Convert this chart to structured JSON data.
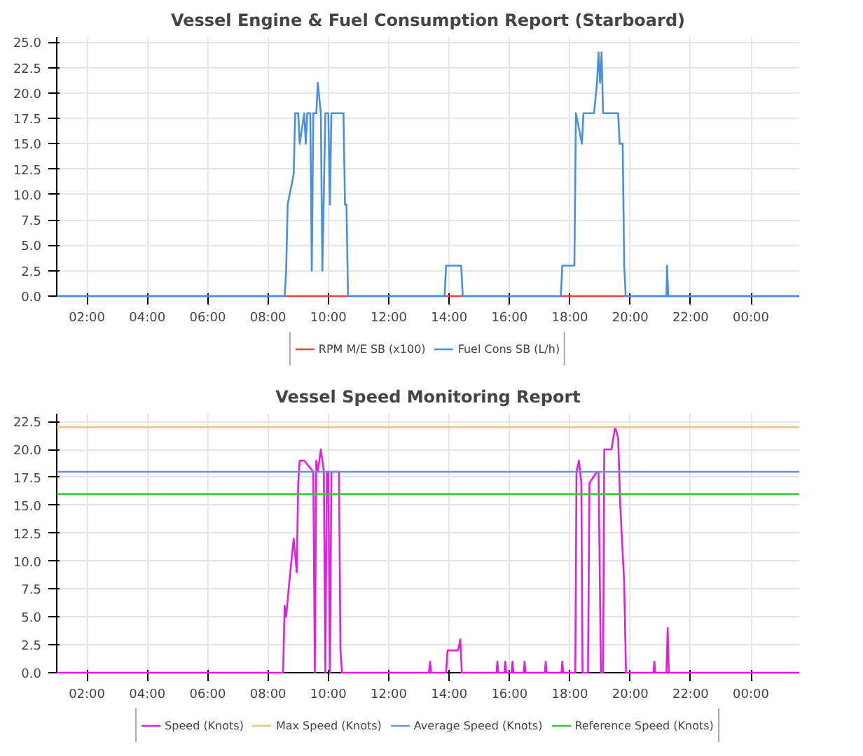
{
  "chart_data": [
    {
      "type": "line",
      "title": "Vessel Engine & Fuel Consumption Report (Starboard)",
      "xlim": [
        1,
        25.6
      ],
      "ylim": [
        0,
        25.5
      ],
      "xticks": [
        {
          "value": 2,
          "label": "02:00"
        },
        {
          "value": 4,
          "label": "04:00"
        },
        {
          "value": 6,
          "label": "06:00"
        },
        {
          "value": 8,
          "label": "08:00"
        },
        {
          "value": 10,
          "label": "10:00"
        },
        {
          "value": 12,
          "label": "12:00"
        },
        {
          "value": 14,
          "label": "14:00"
        },
        {
          "value": 16,
          "label": "16:00"
        },
        {
          "value": 18,
          "label": "18:00"
        },
        {
          "value": 20,
          "label": "20:00"
        },
        {
          "value": 22,
          "label": "22:00"
        },
        {
          "value": 24,
          "label": "00:00"
        }
      ],
      "yticks": [
        {
          "value": 0,
          "label": "0.0"
        },
        {
          "value": 2.5,
          "label": "2.5"
        },
        {
          "value": 5,
          "label": "5.0"
        },
        {
          "value": 7.5,
          "label": "7.5"
        },
        {
          "value": 10,
          "label": "10.0"
        },
        {
          "value": 12.5,
          "label": "12.5"
        },
        {
          "value": 15,
          "label": "15.0"
        },
        {
          "value": 17.5,
          "label": "17.5"
        },
        {
          "value": 20,
          "label": "20.0"
        },
        {
          "value": 22.5,
          "label": "22.5"
        },
        {
          "value": 25,
          "label": "25.0"
        }
      ],
      "grid": true,
      "legend": "bottom",
      "line_style": "solid",
      "series": [
        {
          "name": "RPM M/E SB (x100)",
          "color": "#e04848",
          "x": [
            1,
            25.6
          ],
          "values": [
            0,
            0
          ]
        },
        {
          "name": "Fuel Cons SB (L/h)",
          "color": "#4a90e2",
          "x": [
            1,
            8.55,
            8.6,
            8.65,
            8.85,
            8.9,
            9.0,
            9.05,
            9.2,
            9.25,
            9.3,
            9.4,
            9.45,
            9.5,
            9.6,
            9.65,
            9.75,
            9.8,
            9.9,
            9.95,
            10.0,
            10.05,
            10.1,
            10.15,
            10.3,
            10.5,
            10.55,
            10.6,
            10.65,
            13.85,
            13.9,
            14.4,
            14.45,
            17.7,
            17.75,
            18.15,
            18.2,
            18.4,
            18.45,
            18.8,
            18.9,
            18.95,
            19.0,
            19.05,
            19.1,
            19.2,
            19.6,
            19.65,
            19.75,
            19.8,
            19.85,
            21.2,
            21.22,
            21.26,
            25.6
          ],
          "values": [
            0,
            0,
            2.5,
            9,
            12,
            18,
            18,
            15,
            18,
            15,
            18,
            18,
            2.5,
            18,
            18,
            21,
            18,
            2.5,
            18,
            18,
            18,
            9,
            18,
            18,
            18,
            18,
            9,
            9,
            0,
            0,
            3,
            3,
            0,
            0,
            3,
            3,
            18,
            15,
            18,
            18,
            21,
            24,
            21,
            24,
            18,
            18,
            18,
            15,
            15,
            3,
            0,
            0,
            3,
            0,
            0
          ]
        }
      ]
    },
    {
      "type": "line",
      "title": "Vessel Speed Monitoring Report",
      "xlim": [
        1,
        25.6
      ],
      "ylim": [
        0,
        23.2
      ],
      "xticks": [
        {
          "value": 2,
          "label": "02:00"
        },
        {
          "value": 4,
          "label": "04:00"
        },
        {
          "value": 6,
          "label": "06:00"
        },
        {
          "value": 8,
          "label": "08:00"
        },
        {
          "value": 10,
          "label": "10:00"
        },
        {
          "value": 12,
          "label": "12:00"
        },
        {
          "value": 14,
          "label": "14:00"
        },
        {
          "value": 16,
          "label": "16:00"
        },
        {
          "value": 18,
          "label": "18:00"
        },
        {
          "value": 20,
          "label": "20:00"
        },
        {
          "value": 22,
          "label": "22:00"
        },
        {
          "value": 24,
          "label": "00:00"
        }
      ],
      "yticks": [
        {
          "value": 0,
          "label": "0.0"
        },
        {
          "value": 2.5,
          "label": "2.5"
        },
        {
          "value": 5,
          "label": "5.0"
        },
        {
          "value": 7.5,
          "label": "7.5"
        },
        {
          "value": 10,
          "label": "10.0"
        },
        {
          "value": 12.5,
          "label": "12.5"
        },
        {
          "value": 15,
          "label": "15.0"
        },
        {
          "value": 17.5,
          "label": "17.5"
        },
        {
          "value": 20,
          "label": "20.0"
        },
        {
          "value": 22.5,
          "label": "22.5"
        }
      ],
      "grid": true,
      "legend": "bottom",
      "line_style": "solid",
      "series": [
        {
          "name": "Speed (Knots)",
          "color": "#e020e0",
          "x": [
            1,
            8.5,
            8.55,
            8.6,
            8.7,
            8.85,
            8.95,
            9.0,
            9.05,
            9.2,
            9.5,
            9.55,
            9.6,
            9.65,
            9.75,
            9.85,
            9.9,
            9.95,
            10.0,
            10.05,
            10.1,
            10.35,
            10.4,
            10.45,
            13.33,
            13.37,
            13.41,
            13.9,
            13.95,
            14.3,
            14.37,
            14.42,
            15.57,
            15.6,
            15.63,
            15.83,
            15.86,
            15.89,
            16.07,
            16.1,
            16.13,
            16.47,
            16.5,
            16.53,
            17.17,
            17.2,
            17.23,
            17.72,
            17.75,
            17.78,
            18.18,
            18.22,
            18.3,
            18.38,
            18.42,
            18.6,
            18.65,
            18.9,
            18.95,
            19.03,
            19.1,
            19.14,
            19.38,
            19.5,
            19.6,
            19.67,
            19.8,
            19.86,
            20.77,
            20.8,
            20.83,
            21.2,
            21.24,
            21.28,
            25.6
          ],
          "values": [
            0,
            0,
            6,
            5,
            8,
            12,
            9,
            17,
            19,
            19,
            18,
            0,
            19,
            18,
            20,
            18,
            0,
            18,
            18,
            0,
            18,
            18,
            2,
            0,
            0,
            1,
            0,
            0,
            2,
            2,
            3,
            0,
            0,
            1,
            0,
            0,
            1,
            0,
            0,
            1,
            0,
            0,
            1,
            0,
            0,
            1,
            0,
            0,
            1,
            0,
            0,
            18,
            19,
            17,
            0,
            0,
            17,
            18,
            18,
            0,
            0,
            20,
            20,
            22,
            21,
            15,
            8,
            0,
            0,
            1,
            0,
            0,
            4,
            0,
            0
          ]
        },
        {
          "name": "Max Speed (Knots)",
          "color": "#f5c87a",
          "x": [
            1,
            25.6
          ],
          "values": [
            22,
            22
          ]
        },
        {
          "name": "Average Speed (Knots)",
          "color": "#7090d0",
          "x": [
            1,
            25.6
          ],
          "values": [
            18,
            18
          ]
        },
        {
          "name": "Reference Speed (Knots)",
          "color": "#40c040",
          "x": [
            1,
            25.6
          ],
          "values": [
            16,
            16
          ]
        }
      ]
    }
  ]
}
